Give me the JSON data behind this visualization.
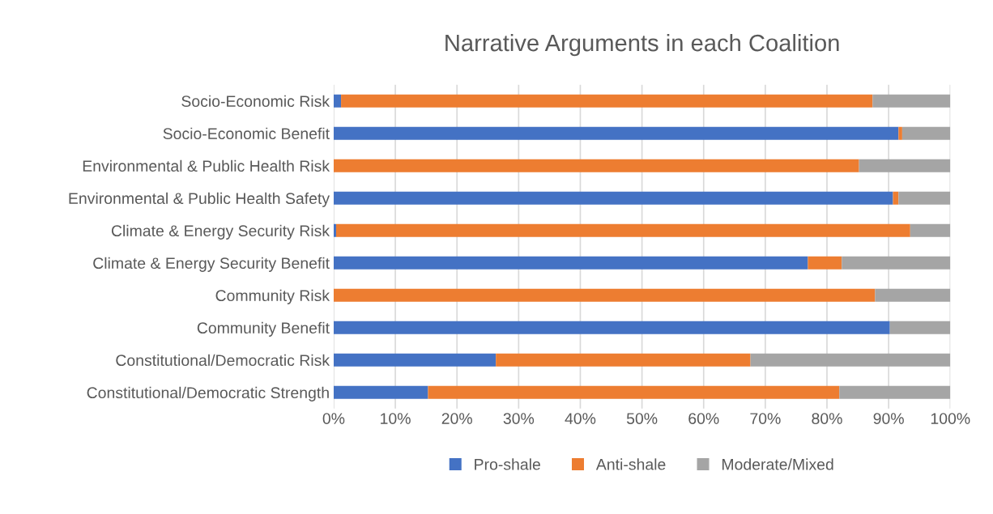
{
  "chart_data": {
    "type": "bar",
    "title": "Narrative Arguments in each Coalition",
    "orientation": "horizontal",
    "stacked": true,
    "categories": [
      "Socio-Economic Risk",
      "Socio-Economic Benefit",
      "Environmental & Public Health Risk",
      "Environmental & Public Health Safety",
      "Climate & Energy Security Risk",
      "Climate & Energy Security Benefit",
      "Community Risk",
      "Community Benefit",
      "Constitutional/Democratic Risk",
      "Constitutional/Democratic Strength"
    ],
    "series": [
      {
        "name": "Pro-shale",
        "color": "#4472c4",
        "values": [
          1.2,
          91.6,
          0,
          90.7,
          0.4,
          76.9,
          0,
          90.2,
          26.3,
          15.3
        ]
      },
      {
        "name": "Anti-shale",
        "color": "#ed7d31",
        "values": [
          86.2,
          0.6,
          85.2,
          0.9,
          93.1,
          5.5,
          87.8,
          0,
          41.3,
          66.7
        ]
      },
      {
        "name": "Moderate/Mixed",
        "color": "#a5a5a5",
        "values": [
          12.6,
          7.8,
          14.8,
          8.4,
          6.5,
          17.6,
          12.2,
          9.8,
          32.4,
          18.0
        ]
      }
    ],
    "xlim": [
      0,
      100
    ],
    "xticks": [
      {
        "value": 0,
        "label": "0%"
      },
      {
        "value": 10,
        "label": "10%"
      },
      {
        "value": 20,
        "label": "20%"
      },
      {
        "value": 30,
        "label": "30%"
      },
      {
        "value": 40,
        "label": "40%"
      },
      {
        "value": 50,
        "label": "50%"
      },
      {
        "value": 60,
        "label": "60%"
      },
      {
        "value": 70,
        "label": "70%"
      },
      {
        "value": 80,
        "label": "80%"
      },
      {
        "value": 90,
        "label": "90%"
      },
      {
        "value": 100,
        "label": "100%"
      }
    ],
    "grid": "x",
    "legend": "bottom"
  }
}
